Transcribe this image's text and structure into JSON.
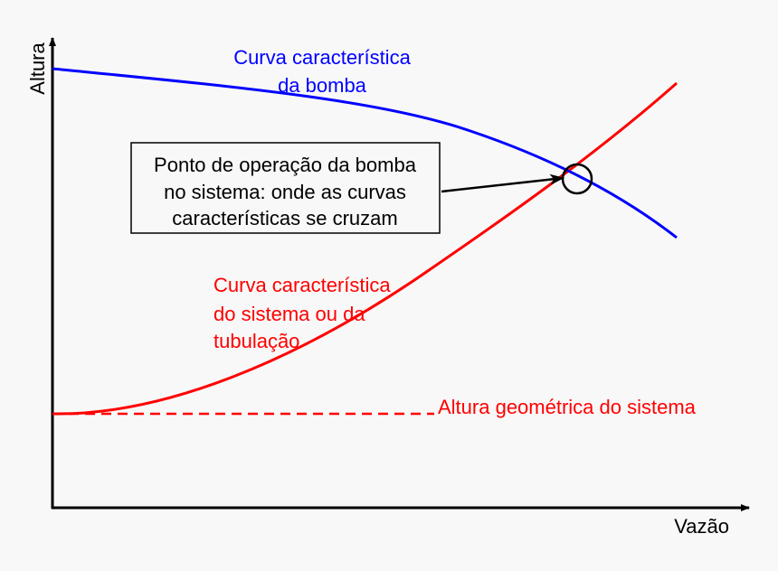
{
  "axes": {
    "y_label": "Altura",
    "x_label": "Vazão"
  },
  "pump_curve": {
    "lines": [
      "Curva característica",
      "da bomba"
    ],
    "color": "#0000ff"
  },
  "system_curve": {
    "lines": [
      "Curva característica",
      "do sistema ou da",
      "tubulação"
    ],
    "color": "#ff0000"
  },
  "static_head": {
    "label": "Altura geométrica do sistema",
    "color": "#ff0000"
  },
  "operating_point": {
    "lines": [
      "Ponto de operação da bomba",
      "no sistema: onde as curvas",
      "características se cruzam"
    ]
  }
}
